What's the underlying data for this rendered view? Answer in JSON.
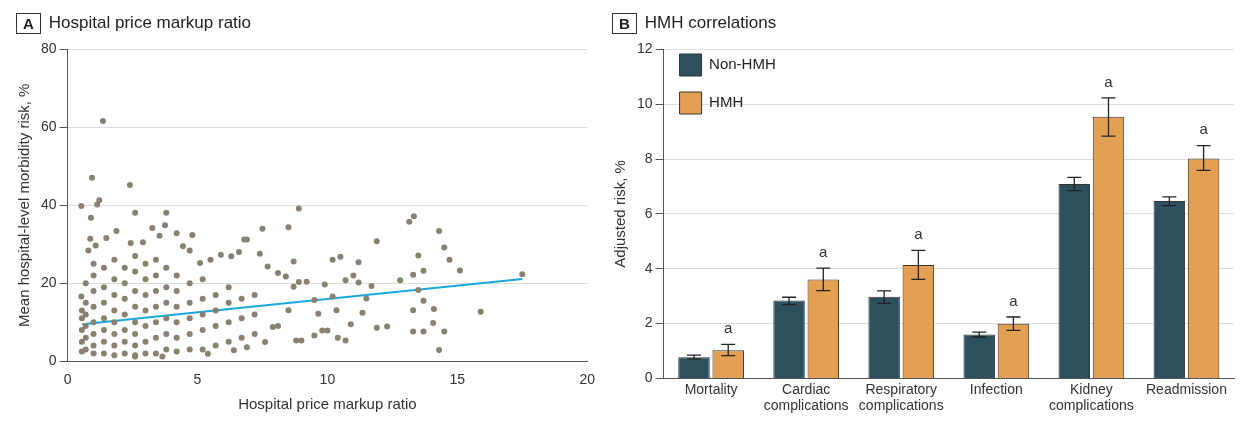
{
  "chart_data": [
    {
      "type": "scatter",
      "title": "Hospital price markup ratio",
      "annotations": [
        "A"
      ],
      "xlabel": "Hospital price markup ratio",
      "ylabel": "Mean hospital-level morbidity risk, %",
      "xlim": [
        0,
        20
      ],
      "xticks": [
        0,
        5,
        10,
        15,
        20
      ],
      "ylim": [
        0,
        80
      ],
      "yticks": [
        0,
        20,
        40,
        60,
        80
      ],
      "grid": "y",
      "series": [
        {
          "type": "scatter",
          "marker": "circle",
          "color": "#8a8070",
          "x": [
            1.36,
            0.94,
            2.4,
            0.53,
            1.14,
            1.22,
            0.9,
            2.6,
            3.8,
            8.9,
            13.15,
            13.33,
            14.3,
            14.5,
            14.7,
            15.1,
            15.9,
            17.5,
            14.3,
            13.3,
            13.7,
            14.5,
            11.9,
            8.5,
            7.5,
            6.8,
            6.9,
            4.8,
            4.2,
            3.75,
            3.26,
            13.5,
            13.3,
            13.7,
            12.8,
            13.7,
            14.1,
            13.3,
            14.07,
            13.5,
            12.3,
            11.9,
            11.2,
            10.5,
            10.2,
            11.0,
            10.7,
            11.2,
            11.7,
            11.5,
            11.35,
            10.9,
            10.7,
            10.4,
            9.8,
            10.0,
            8.8,
            9.0,
            9.5,
            8.7,
            9.2,
            8.9,
            9.9,
            10.2,
            10.35,
            9.5,
            9.65,
            8.7,
            8.5,
            8.1,
            8.4,
            7.4,
            7.7,
            6.6,
            6.3,
            5.9,
            5.5,
            7.9,
            7.6,
            8.1,
            6.9,
            6.4,
            5.4,
            3.65,
            2.6,
            0.53,
            0.8,
            0.87,
            1.08,
            1.49,
            1.88,
            2.43,
            2.9,
            3.54,
            4.44,
            4.7,
            5.1,
            0.55,
            0.55,
            0.55,
            0.55,
            0.55,
            0.7,
            0.7,
            0.7,
            0.7,
            0.7,
            0.7,
            1.0,
            1.0,
            1.0,
            1.0,
            1.0,
            1.0,
            1.0,
            1.0,
            1.4,
            1.4,
            1.4,
            1.4,
            1.4,
            1.4,
            1.4,
            1.8,
            1.8,
            1.8,
            1.8,
            1.8,
            1.8,
            1.8,
            1.8,
            2.2,
            2.2,
            2.2,
            2.2,
            2.2,
            2.2,
            2.2,
            2.6,
            2.6,
            2.6,
            2.6,
            2.6,
            2.6,
            2.6,
            2.6,
            3.0,
            3.0,
            3.0,
            3.0,
            3.0,
            3.0,
            3.0,
            3.4,
            3.4,
            3.4,
            3.4,
            3.4,
            3.4,
            3.4,
            3.8,
            3.8,
            3.8,
            3.8,
            3.8,
            3.8,
            4.2,
            4.2,
            4.2,
            4.2,
            4.2,
            4.2,
            4.7,
            4.7,
            4.7,
            4.7,
            4.7,
            5.2,
            5.2,
            5.2,
            5.2,
            5.2,
            5.7,
            5.7,
            5.7,
            5.7,
            6.2,
            6.2,
            6.2,
            6.2,
            6.7,
            6.7,
            6.7,
            7.2,
            7.2,
            7.2
          ],
          "values": [
            61.6,
            47.1,
            45.2,
            39.8,
            40.2,
            41.3,
            36.8,
            38.1,
            38.1,
            39.2,
            35.8,
            37.2,
            33.4,
            29.2,
            26.0,
            23.3,
            12.7,
            22.3,
            2.9,
            7.6,
            7.6,
            7.6,
            30.8,
            34.4,
            34.0,
            31.2,
            31.2,
            32.4,
            32.8,
            34.9,
            34.2,
            27.1,
            22.2,
            23.2,
            20.8,
            15.5,
            13.4,
            13.1,
            9.8,
            18.3,
            8.9,
            8.6,
            25.4,
            26.8,
            26.0,
            22.0,
            20.8,
            20.2,
            19.3,
            16.1,
            12.4,
            9.5,
            5.3,
            6.0,
            7.9,
            7.9,
            5.3,
            5.3,
            6.6,
            25.6,
            20.4,
            20.3,
            19.7,
            16.6,
            13.1,
            15.7,
            12.2,
            19.1,
            13.1,
            22.6,
            21.7,
            27.6,
            24.3,
            28.0,
            26.9,
            27.3,
            26.0,
            8.8,
            4.9,
            9.0,
            3.6,
            2.8,
            1.9,
            1.2,
            1.2,
            16.6,
            28.4,
            31.4,
            29.7,
            31.6,
            33.4,
            30.3,
            30.5,
            32.2,
            29.5,
            28.4,
            25.2,
            2.5,
            5,
            8,
            11,
            13,
            3,
            6,
            9,
            12,
            15,
            20,
            2,
            4,
            7,
            10,
            14,
            18,
            22,
            25,
            2,
            5,
            8,
            11,
            15,
            19,
            24,
            1.5,
            4,
            7,
            10,
            13,
            17,
            21,
            26,
            2,
            5,
            8,
            12,
            16,
            20,
            24,
            1.5,
            4,
            7,
            10,
            14,
            18,
            23,
            27,
            2,
            5,
            9,
            13,
            17,
            21,
            25,
            2,
            6,
            10,
            14,
            18,
            22,
            26,
            3,
            7,
            11,
            15,
            19,
            24,
            2.5,
            6,
            10,
            14,
            18,
            22,
            3,
            7,
            11,
            15,
            20,
            3,
            8,
            12,
            16,
            21,
            4,
            9,
            13,
            17,
            5,
            10,
            15,
            19,
            6,
            11,
            16,
            7,
            12,
            17
          ]
        },
        {
          "type": "line",
          "marker": "none",
          "color": "#1aa7e0",
          "x": [
            0.56,
            17.5
          ],
          "values": [
            9.5,
            21.1
          ]
        }
      ]
    },
    {
      "type": "bar",
      "title": "HMH correlations",
      "ylabel": "Adjusted risk, %",
      "ylim": [
        0,
        12
      ],
      "yticks": [
        0,
        2,
        4,
        6,
        8,
        10,
        12
      ],
      "grid": "y",
      "legend": "top left",
      "categories": [
        "Mortality",
        "Cardiac complications",
        "Respiratory complications",
        "Infection",
        "Kidney complications",
        "Readmission"
      ],
      "series": [
        {
          "name": "Non-HMH",
          "color": "#2c505e",
          "values": [
            0.77,
            2.84,
            2.98,
            1.6,
            7.09,
            6.47
          ],
          "errors": [
            [
              0.7,
              0.85
            ],
            [
              2.69,
              2.96
            ],
            [
              2.74,
              3.19
            ],
            [
              1.51,
              1.69
            ],
            [
              6.85,
              7.33
            ],
            [
              6.3,
              6.62
            ]
          ]
        },
        {
          "name": "HMH",
          "color": "#e3a052",
          "values": [
            1.03,
            3.61,
            4.14,
            1.99,
            9.54,
            8.02
          ],
          "errors": [
            [
              0.83,
              1.24
            ],
            [
              3.2,
              4.02
            ],
            [
              3.61,
              4.67
            ],
            [
              1.75,
              2.24
            ],
            [
              8.84,
              10.23
            ],
            [
              7.59,
              8.49
            ]
          ]
        }
      ],
      "annotations": [
        "B",
        "a",
        "a",
        "a",
        "a",
        "a",
        "a"
      ]
    }
  ]
}
